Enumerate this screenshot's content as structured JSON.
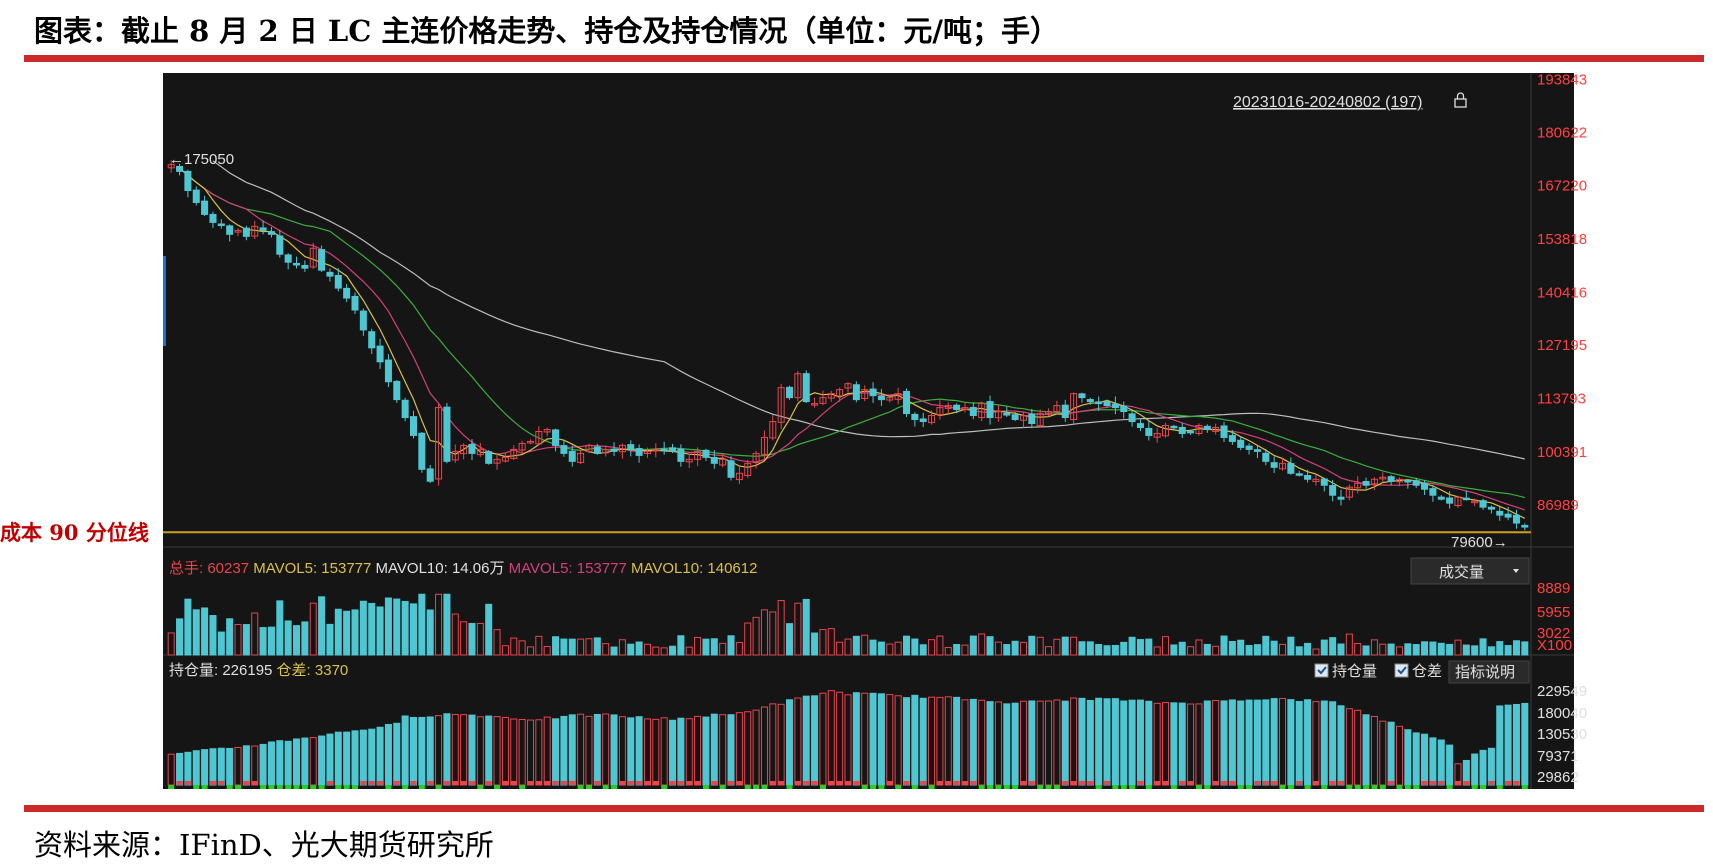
{
  "header": {
    "title": "图表：截止 8 月 2 日 LC 主连价格走势、持仓及持仓情况（单位：元/吨；手）"
  },
  "footer": {
    "source": "资料来源：IFinD、光大期货研究所"
  },
  "annotations": {
    "cost_line_label": "成本 90 分位线"
  },
  "colors": {
    "brand_red": "#cc2a2a",
    "up_candle": "#e8454d",
    "down_candle": "#4ec7d2",
    "panel_bg": "#151515",
    "cost_line": "#c8a020",
    "ma_white": "#bdbdbd",
    "ma_yellow": "#d9c14a",
    "ma_pink": "#d4407a",
    "ma_green": "#3cae3c",
    "axis_text": "#ff4040",
    "axis_text_gray": "#e0e0e0"
  },
  "chart_data": {
    "type": "candlestick",
    "period_label": "20231016-20240802 (197)",
    "price_axis_ticks": [
      "193843",
      "180622",
      "167220",
      "153818",
      "140416",
      "127195",
      "113793",
      "100391",
      "86989"
    ],
    "price_range": [
      78000,
      194000
    ],
    "marked_high": "175050",
    "marked_low": "79600",
    "cost_line_value": 80200,
    "price_close": [
      172500,
      170800,
      166000,
      163000,
      160000,
      158000,
      157500,
      155000,
      156000,
      154500,
      157000,
      156000,
      155000,
      150000,
      148000,
      147500,
      146500,
      151500,
      146000,
      144500,
      141500,
      139000,
      136000,
      131000,
      126500,
      123000,
      118000,
      113500,
      109000,
      104500,
      96000,
      93000,
      111500,
      98000,
      100500,
      102000,
      100000,
      101000,
      97500,
      98500,
      99000,
      101000,
      102500,
      103000,
      105500,
      106000,
      102000,
      100000,
      98000,
      100000,
      102000,
      100000,
      101000,
      100500,
      102000,
      101000,
      99500,
      100500,
      101000,
      101000,
      100500,
      98000,
      98500,
      100500,
      99000,
      97500,
      98500,
      94000,
      95000,
      97500,
      100000,
      104000,
      108000,
      116500,
      114000,
      120000,
      113000,
      112500,
      114000,
      115000,
      116000,
      117500,
      113500,
      116000,
      114500,
      113500,
      114000,
      115000,
      110000,
      108500,
      108000,
      109500,
      111500,
      112000,
      111000,
      111500,
      109500,
      112500,
      109000,
      110500,
      110000,
      108500,
      109500,
      107500,
      110000,
      110500,
      112000,
      109000,
      115000,
      114000,
      113000,
      112500,
      112000,
      111500,
      110500,
      108000,
      106500,
      104500,
      105000,
      107000,
      106500,
      105000,
      105500,
      107000,
      106000,
      106500,
      104000,
      103000,
      101500,
      101000,
      100500,
      98000,
      96500,
      97500,
      95000,
      94500,
      93500,
      93500,
      92000,
      89500,
      88500,
      91500,
      92500,
      92000,
      93500,
      94000,
      93000,
      93500,
      93000,
      92000,
      91000,
      89500,
      88500,
      87500,
      89000,
      88500,
      88000,
      86500,
      86000,
      84500,
      84000,
      82500,
      81500
    ],
    "volume_axis_ticks": [
      "8889",
      "5955",
      "3022",
      "X100"
    ],
    "volume_summary": {
      "total": "总手: 60237",
      "mavol5_a": "MAVOL5: 153777",
      "mavol10_a": "MAVOL10: 14.06万",
      "mavol5_b": "MAVOL5: 153777",
      "mavol10_b": "MAVOL10: 140612"
    },
    "volume_selector": "成交量",
    "open_interest_axis_ticks": [
      "229549",
      "180040",
      "130530",
      "79371",
      "29862"
    ],
    "open_interest_summary": {
      "oi": "持仓量: 226195",
      "diff": "仓差: 3370"
    },
    "oi_legend": [
      "持仓量",
      "仓差"
    ],
    "indicator_button": "指标说明"
  }
}
